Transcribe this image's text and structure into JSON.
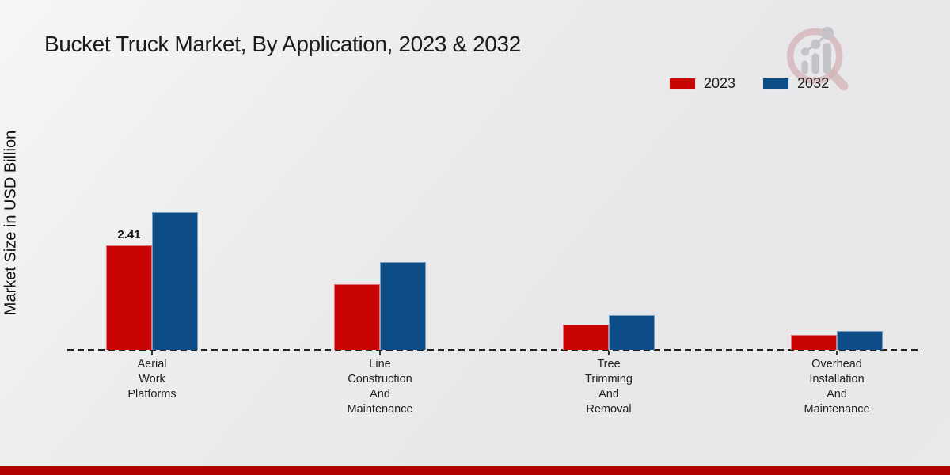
{
  "title": "Bucket Truck Market, By Application, 2023 & 2032",
  "chart_data": {
    "type": "bar",
    "title": "Bucket Truck Market, By Application, 2023 & 2032",
    "xlabel": "",
    "ylabel": "Market Size in USD Billion",
    "unit": "USD Billion",
    "categories": [
      "Aerial Work Platforms",
      "Line Construction And Maintenance",
      "Tree Trimming And Removal",
      "Overhead Installation And Maintenance"
    ],
    "series": [
      {
        "name": "2023",
        "color": "#c90404",
        "values": [
          2.41,
          1.52,
          0.58,
          0.35
        ]
      },
      {
        "name": "2032",
        "color": "#0d4d87",
        "values": [
          3.18,
          2.03,
          0.8,
          0.44
        ]
      }
    ],
    "annotations": [
      {
        "series": "2023",
        "category_index": 0,
        "text": "2.41"
      }
    ],
    "ylim": [
      0,
      3.6
    ],
    "grid": false,
    "axis_line_style": "dashed",
    "legend_position": "top-right"
  },
  "logo": {
    "name": "magnifier-growth-chart-logo"
  },
  "footer": {
    "bar_color": "#b10303"
  }
}
